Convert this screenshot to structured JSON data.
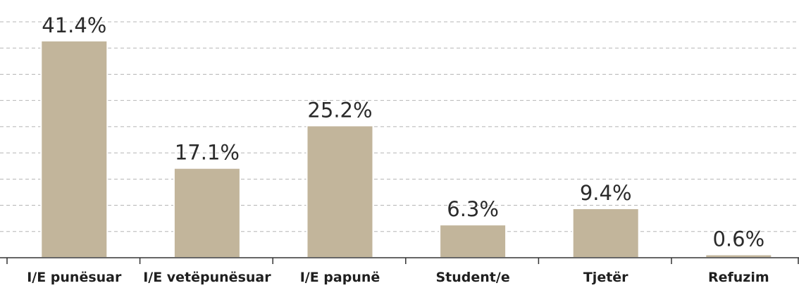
{
  "chart_data": {
    "type": "bar",
    "categories": [
      "I/E punësuar",
      "I/E vetëpunësuar",
      "I/E papunë",
      "Student/e",
      "Tjetër",
      "Refuzim"
    ],
    "values": [
      41.4,
      17.1,
      25.2,
      6.3,
      9.4,
      0.6
    ],
    "value_labels": [
      "41.4%",
      "17.1%",
      "25.2%",
      "6.3%",
      "9.4%",
      "0.6%"
    ],
    "color": "#c2b59b",
    "ylim": [
      0,
      45
    ],
    "yticks": [
      0,
      5,
      10,
      15,
      20,
      25,
      30,
      35,
      40,
      45
    ],
    "grid": true
  }
}
